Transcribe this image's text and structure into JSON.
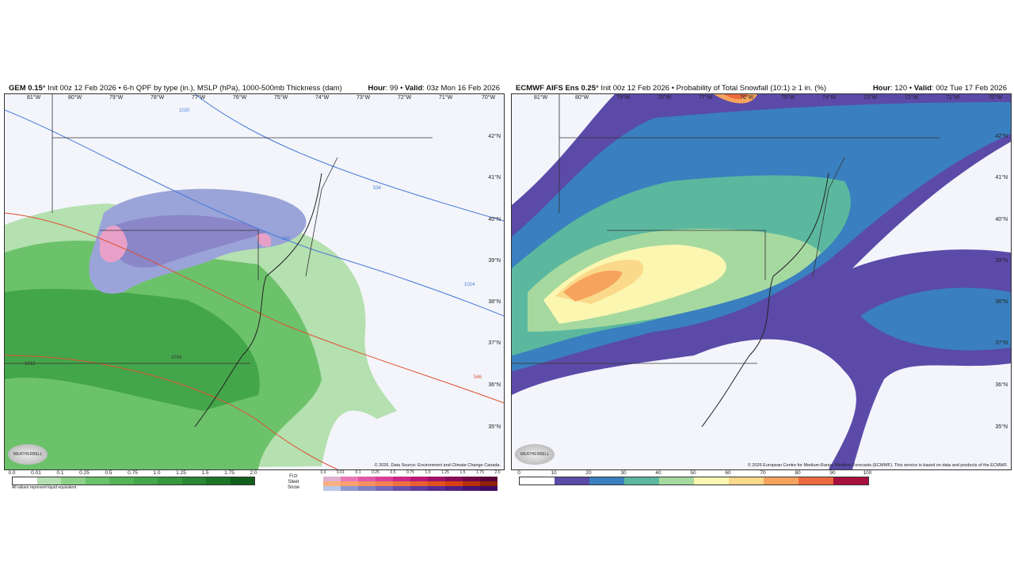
{
  "left_panel": {
    "title_bold": "GEM 0.15°",
    "title_rest": " Init 00z 12 Feb 2026 • 6-h QPF by type (in.), MSLP (hPa), 1000-500mb Thickness (dam)",
    "hour_label": "Hour",
    "hour": "99",
    "valid_label": "Valid",
    "valid": "03z Mon 16 Feb 2026",
    "credit": "© 2026. Data Source: Environment and Climate Change Canada.",
    "logo": "WEATHERBELL",
    "qpf_legend": {
      "ticks": [
        "0.0",
        "0.01",
        "0.1",
        "0.25",
        "0.5",
        "0.75",
        "1.0",
        "1.25",
        "1.5",
        "1.75",
        "2.0"
      ],
      "colors": [
        "#ffffff",
        "#b5e0b0",
        "#8ed18a",
        "#6cc26a",
        "#55b458",
        "#44a64a",
        "#36973e",
        "#2a8733",
        "#1e7528",
        "#125f1d"
      ],
      "note": "All values represent liquid equivalent"
    },
    "ptype_legend": {
      "labels": [
        "Frzr",
        "Sleet",
        "Snow"
      ],
      "ticks": [
        "0.0",
        "0.01",
        "0.1",
        "0.25",
        "0.5",
        "0.75",
        "1.0",
        "1.25",
        "1.5",
        "1.75",
        "2.0"
      ],
      "frzr_colors": [
        "#e0b0d0",
        "#e878b8",
        "#e058a8",
        "#d84098",
        "#c82888",
        "#b81878",
        "#a01068",
        "#880c58",
        "#700848",
        "#580438"
      ],
      "sleet_colors": [
        "#f8b080",
        "#f8a070",
        "#f89060",
        "#f88050",
        "#f07040",
        "#e86030",
        "#e05020",
        "#d84010",
        "#b83008",
        "#902000"
      ],
      "snow_colors": [
        "#b8c8e8",
        "#9098d0",
        "#8080c0",
        "#7468b8",
        "#6850a8",
        "#603c9c",
        "#582c90",
        "#502080",
        "#481470",
        "#400860"
      ]
    },
    "contour_labels": [
      "1020",
      "1024",
      "1024",
      "534",
      "540",
      "546",
      "1012",
      "1016"
    ]
  },
  "right_panel": {
    "title_bold": "ECMWF AIFS Ens 0.25°",
    "title_rest": " Init 00z 12 Feb 2026 • Probability of Total Snowfall (10:1) ≥ 1 in. (%)",
    "hour_label": "Hour",
    "hour": "120",
    "valid_label": "Valid",
    "valid": "00z Tue 17 Feb 2026",
    "credit": "© 2026 European Centre for Medium-Range Weather Forecasts (ECMWF). This service is based on data and products of the ECMWF.",
    "logo": "WEATHERBELL",
    "legend": {
      "ticks": [
        "0",
        "10",
        "20",
        "30",
        "40",
        "50",
        "60",
        "70",
        "80",
        "90",
        "100"
      ],
      "colors": [
        "#ffffff",
        "#5b4aa8",
        "#3a7fbf",
        "#5bb89e",
        "#a6d9a0",
        "#fbf6b0",
        "#fbd98a",
        "#f6a35e",
        "#ec6a3e",
        "#a8103e"
      ]
    }
  },
  "longitudes": [
    "81°W",
    "80°W",
    "79°W",
    "78°W",
    "77°W",
    "76°W",
    "75°W",
    "74°W",
    "73°W",
    "72°W",
    "71°W",
    "70°W"
  ],
  "latitudes": [
    "42°N",
    "41°N",
    "40°N",
    "39°N",
    "38°N",
    "37°N",
    "36°N",
    "35°N"
  ]
}
